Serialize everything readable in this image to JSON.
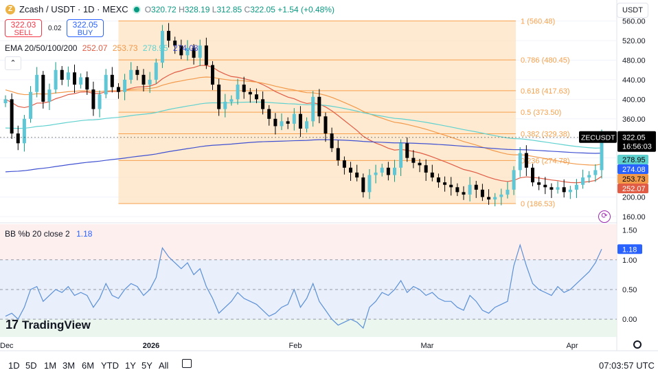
{
  "header": {
    "symbol": "Zcash / USDT · 1D · MEXC",
    "open_label": "O",
    "open": "320.72",
    "high_label": "H",
    "high": "328.19",
    "low_label": "L",
    "low": "312.85",
    "close_label": "C",
    "close": "322.05",
    "change": "+1.54 (+0.48%)"
  },
  "trade": {
    "sell_price": "322.03",
    "sell_label": "SELL",
    "spread": "0.02",
    "buy_price": "322.05",
    "buy_label": "BUY"
  },
  "ema": {
    "label": "EMA 20/50/100/200",
    "values": [
      "252.07",
      "253.73",
      "278.95",
      "274.08"
    ],
    "colors": [
      "#e05c45",
      "#f2994a",
      "#5ed1cf",
      "#3f51d1"
    ]
  },
  "bb": {
    "label": "BB %b 20 close 2",
    "value": "1.18"
  },
  "currency": "USDT",
  "brand": "TradingView",
  "timeframes": [
    "1D",
    "5D",
    "1M",
    "3M",
    "6M",
    "YTD",
    "1Y",
    "5Y",
    "All"
  ],
  "clock": "07:03:57 UTC",
  "colors": {
    "up": "#089981",
    "down": "#000000",
    "fib": "#f7a04b",
    "bb_line": "#5b8fd6"
  },
  "chart_data": [
    {
      "type": "candlestick",
      "y_axis_ticks": [
        160,
        200,
        240,
        280,
        320,
        360,
        400,
        440,
        480,
        520,
        560
      ],
      "ylim": [
        150,
        575
      ],
      "x_ticks": [
        "Dec",
        "2026",
        "Feb",
        "Mar",
        "Apr"
      ],
      "fibonacci": [
        {
          "level": "1",
          "price": 560.48
        },
        {
          "level": "0.786",
          "price": 480.45
        },
        {
          "level": "0.618",
          "price": 417.63
        },
        {
          "level": "0.5",
          "price": 373.5
        },
        {
          "level": "0.382",
          "price": 329.38
        },
        {
          "level": "0.236",
          "price": 274.78
        },
        {
          "level": "0",
          "price": 186.53
        }
      ],
      "price_tag": {
        "symbol": "ZECUSDT",
        "price": "322.05",
        "countdown": "16:56:03"
      },
      "ema_tags": [
        "278.95",
        "274.08",
        "253.73",
        "252.07"
      ],
      "closes": [
        400,
        330,
        310,
        360,
        415,
        450,
        395,
        420,
        460,
        440,
        455,
        430,
        445,
        420,
        380,
        410,
        450,
        425,
        415,
        440,
        460,
        450,
        430,
        440,
        475,
        540,
        520,
        510,
        490,
        505,
        485,
        510,
        470,
        430,
        380,
        395,
        400,
        430,
        415,
        410,
        400,
        380,
        360,
        345,
        355,
        350,
        370,
        340,
        355,
        405,
        365,
        330,
        300,
        275,
        260,
        250,
        240,
        210,
        245,
        250,
        260,
        245,
        260,
        310,
        280,
        270,
        265,
        250,
        240,
        230,
        225,
        220,
        210,
        205,
        225,
        215,
        200,
        195,
        200,
        205,
        215,
        255,
        290,
        260,
        230,
        225,
        220,
        215,
        220,
        210,
        215,
        225,
        240,
        245,
        255,
        322
      ]
    },
    {
      "type": "line",
      "name": "BB %b 20 close 2",
      "y_axis_ticks": [
        0.0,
        0.5,
        1.0,
        1.5
      ],
      "ylim": [
        -0.3,
        1.6
      ],
      "values": [
        0.05,
        0.1,
        0.0,
        0.2,
        0.5,
        0.55,
        0.3,
        0.4,
        0.5,
        0.45,
        0.55,
        0.4,
        0.45,
        0.4,
        0.2,
        0.35,
        0.6,
        0.4,
        0.35,
        0.5,
        0.6,
        0.55,
        0.4,
        0.5,
        0.7,
        1.2,
        1.05,
        0.95,
        0.85,
        0.95,
        0.75,
        0.85,
        0.55,
        0.35,
        0.1,
        0.2,
        0.3,
        0.45,
        0.35,
        0.3,
        0.25,
        0.15,
        0.05,
        0.1,
        0.2,
        0.25,
        0.5,
        0.2,
        0.35,
        0.6,
        0.3,
        0.15,
        0.0,
        -0.1,
        -0.05,
        0.0,
        -0.05,
        -0.15,
        0.2,
        0.3,
        0.45,
        0.4,
        0.5,
        0.65,
        0.45,
        0.55,
        0.5,
        0.4,
        0.45,
        0.35,
        0.3,
        0.3,
        0.2,
        0.15,
        0.4,
        0.3,
        0.15,
        0.1,
        0.2,
        0.25,
        0.3,
        0.9,
        1.25,
        0.9,
        0.6,
        0.5,
        0.45,
        0.4,
        0.55,
        0.45,
        0.5,
        0.6,
        0.7,
        0.8,
        0.95,
        1.18
      ]
    }
  ]
}
